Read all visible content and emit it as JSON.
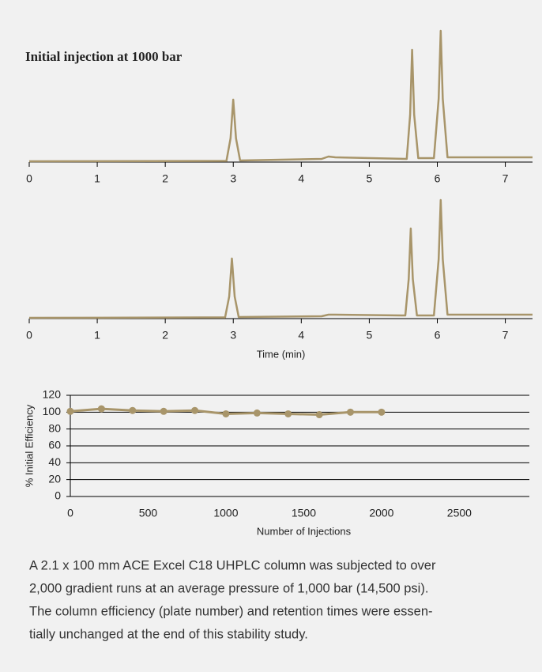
{
  "chart_data": [
    {
      "type": "line",
      "title": "Initial injection at 1000 bar",
      "x": [
        0,
        2.9,
        2.96,
        3.0,
        3.04,
        3.1,
        4.3,
        4.4,
        4.5,
        5.55,
        5.6,
        5.63,
        5.66,
        5.72,
        5.95,
        6.02,
        6.05,
        6.08,
        6.15,
        7.4
      ],
      "values": [
        1,
        1.5,
        30,
        79,
        30,
        2,
        4,
        7,
        6,
        4,
        60,
        142,
        60,
        5,
        5,
        80,
        166,
        80,
        6,
        6
      ],
      "color": "#a8956a",
      "xlim": [
        0,
        7.4
      ],
      "ylim": [
        0,
        180
      ],
      "xticks": [
        0,
        1,
        2,
        3,
        4,
        5,
        6,
        7
      ]
    },
    {
      "type": "line",
      "x_label": "Time (min)",
      "x": [
        0,
        2.88,
        2.94,
        2.98,
        3.02,
        3.08,
        4.3,
        4.4,
        4.5,
        5.53,
        5.58,
        5.61,
        5.64,
        5.7,
        5.95,
        6.02,
        6.05,
        6.08,
        6.15,
        7.4
      ],
      "values": [
        1,
        1.5,
        28,
        76,
        28,
        2,
        3,
        5,
        5,
        4,
        50,
        114,
        50,
        4,
        4,
        75,
        150,
        75,
        5,
        5
      ],
      "color": "#a8956a",
      "xlim": [
        0,
        7.4
      ],
      "ylim": [
        0,
        180
      ],
      "xticks": [
        0,
        1,
        2,
        3,
        4,
        5,
        6,
        7
      ]
    },
    {
      "type": "line",
      "x_label": "Number of Injections",
      "y_label": "% Initial Efficiency",
      "x": [
        0,
        200,
        400,
        600,
        800,
        1000,
        1200,
        1400,
        1600,
        1800,
        2000
      ],
      "values": [
        101,
        104,
        102,
        101,
        102,
        98,
        99,
        98,
        97,
        100,
        100
      ],
      "color": "#a8956a",
      "markers": true,
      "grid": true,
      "xlim": [
        0,
        2950
      ],
      "ylim": [
        0,
        120
      ],
      "xticks": [
        0,
        500,
        1000,
        1500,
        2000,
        2500
      ],
      "yticks": [
        0,
        20,
        40,
        60,
        80,
        100,
        120
      ]
    }
  ],
  "caption": {
    "lines": [
      "A 2.1 x 100 mm ACE Excel C18 UHPLC column was subjected to over",
      "2,000 gradient runs at an average pressure of 1,000 bar (14,500 psi).",
      "The column efficiency (plate number) and retention times were essen-",
      "tially unchanged at the end of this stability study."
    ]
  }
}
